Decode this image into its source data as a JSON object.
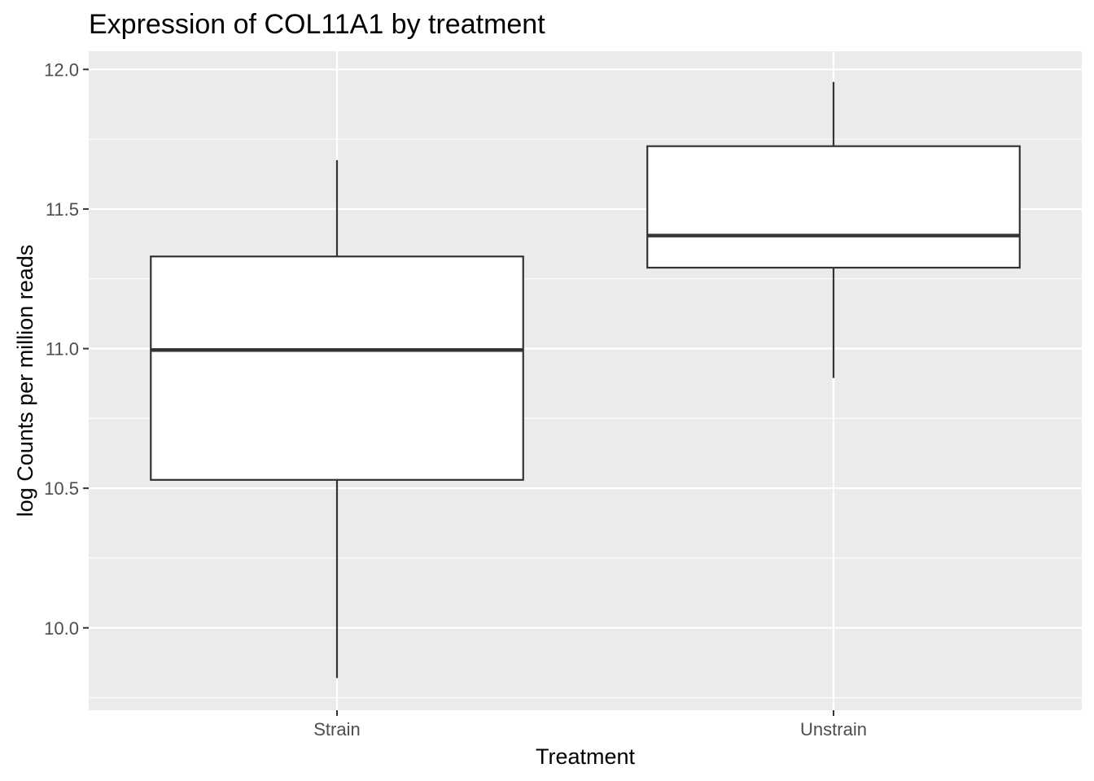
{
  "chart_data": {
    "type": "boxplot",
    "title": "Expression of COL11A1 by treatment",
    "xlabel": "Treatment",
    "ylabel": "log Counts per million reads",
    "categories": [
      "Strain",
      "Unstrain"
    ],
    "boxes": [
      {
        "category": "Strain",
        "whisker_low": 9.82,
        "q1": 10.53,
        "median": 10.995,
        "q3": 11.33,
        "whisker_high": 11.675
      },
      {
        "category": "Unstrain",
        "whisker_low": 10.895,
        "q1": 11.29,
        "median": 11.405,
        "q3": 11.725,
        "whisker_high": 11.955
      }
    ],
    "ylim": [
      9.705,
      12.065
    ],
    "yticks": [
      10.0,
      10.5,
      11.0,
      11.5,
      12.0
    ],
    "ytick_labels": [
      "10.0",
      "10.5",
      "11.0",
      "11.5",
      "12.0"
    ],
    "grid": true,
    "colors": {
      "panel_background": "#ebebeb",
      "grid_line": "#ffffff",
      "box_fill": "#ffffff",
      "box_stroke": "#333333",
      "tick_text": "#4d4d4d"
    }
  }
}
